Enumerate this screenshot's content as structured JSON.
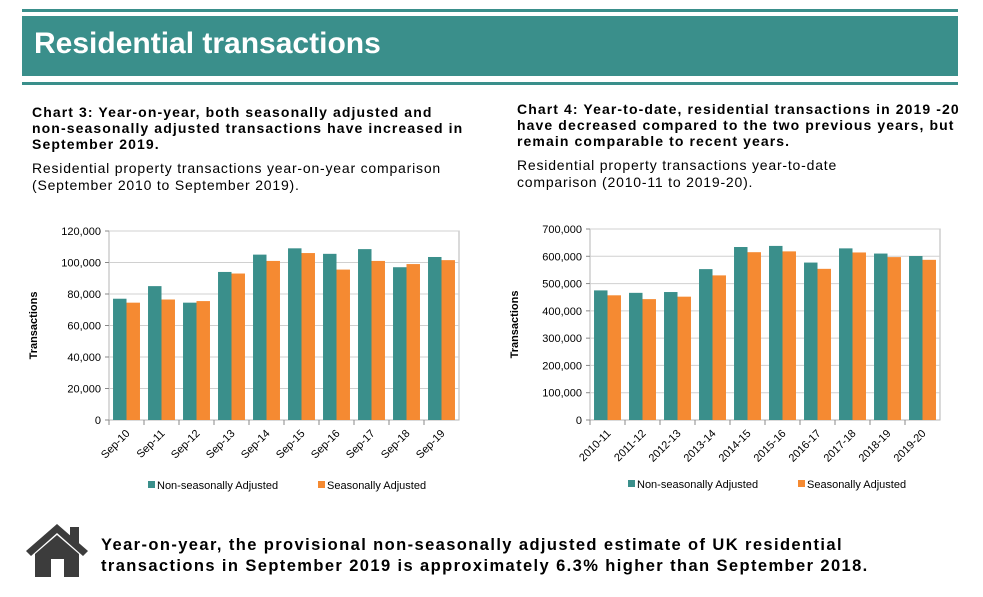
{
  "header": {
    "title": "Residential transactions"
  },
  "left": {
    "title": "Chart 3: Year-on-year, both seasonally adjusted and non-seasonally adjusted transactions have increased in September 2019.",
    "subtitle": "Residential property transactions year-on-year comparison (September 2010 to September 2019)."
  },
  "right": {
    "title": "Chart 4: Year-to-date, residential transactions in 2019 -20 have decreased compared to the two previous years, but remain comparable to recent years.",
    "subtitle": "Residential property transactions year-to-date comparison (2010-11 to 2019-20)."
  },
  "footer": {
    "icon": "house-icon",
    "note": "Year-on-year, the provisional non-seasonally adjusted estimate of UK residential transactions in September 2019 is approximately 6.3% higher than September 2018."
  },
  "colors": {
    "teal": "#3a8f8b",
    "orange": "#f58a32",
    "grid": "#d0d0d0"
  },
  "chart_data": [
    {
      "type": "bar",
      "ylabel": "Transactions",
      "ylim": [
        0,
        120000
      ],
      "yticks": [
        "0",
        "20,000",
        "40,000",
        "60,000",
        "80,000",
        "100,000",
        "120,000"
      ],
      "grid": true,
      "legend": "bottom",
      "categories": [
        "Sep-10",
        "Sep-11",
        "Sep-12",
        "Sep-13",
        "Sep-14",
        "Sep-15",
        "Sep-16",
        "Sep-17",
        "Sep-18",
        "Sep-19"
      ],
      "series": [
        {
          "name": "Non-seasonally Adjusted",
          "values": [
            77000,
            85000,
            74500,
            94000,
            105000,
            109000,
            105500,
            108500,
            97000,
            103500
          ]
        },
        {
          "name": "Seasonally Adjusted",
          "values": [
            74500,
            76500,
            75500,
            93000,
            101000,
            106000,
            95500,
            101000,
            99000,
            101500
          ]
        }
      ]
    },
    {
      "type": "bar",
      "ylabel": "Transactions",
      "ylim": [
        0,
        700000
      ],
      "yticks": [
        "0",
        "100,000",
        "200,000",
        "300,000",
        "400,000",
        "500,000",
        "600,000",
        "700,000"
      ],
      "grid": true,
      "legend": "bottom",
      "categories": [
        "2010-11",
        "2011-12",
        "2012-13",
        "2013-14",
        "2014-15",
        "2015-16",
        "2016-17",
        "2017-18",
        "2018-19",
        "2019-20"
      ],
      "series": [
        {
          "name": "Non-seasonally Adjusted",
          "values": [
            475000,
            466000,
            469000,
            553000,
            634000,
            638000,
            577000,
            629000,
            610000,
            601000
          ]
        },
        {
          "name": "Seasonally Adjusted",
          "values": [
            457000,
            443000,
            452000,
            530000,
            615000,
            618000,
            554000,
            614000,
            597000,
            587000
          ]
        }
      ]
    }
  ]
}
